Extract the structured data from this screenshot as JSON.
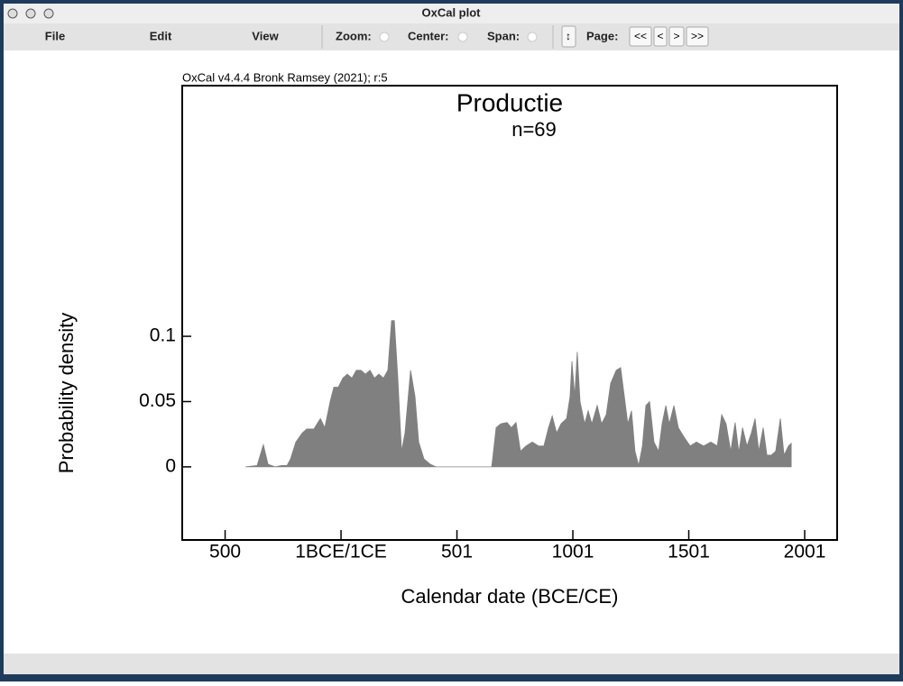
{
  "window": {
    "title": "OxCal plot",
    "menu": [
      "File",
      "Edit",
      "View"
    ],
    "toolbar": {
      "zoom": "Zoom:",
      "center": "Center:",
      "span": "Span:",
      "page": "Page:",
      "buttons": [
        "<<",
        "<",
        ">",
        ">>"
      ]
    }
  },
  "chart_data": {
    "type": "area",
    "annotation": "OxCal v4.4.4 Bronk Ramsey (2021); r:5",
    "title": "Productie",
    "subtitle": "n=69",
    "xlabel": "Calendar date (BCE/CE)",
    "ylabel": "Probability density",
    "color": "#808080",
    "xlim": [
      -685,
      2140
    ],
    "xticks": [
      {
        "value": -500,
        "label": "500"
      },
      {
        "value": 0,
        "label": "1BCE/1CE"
      },
      {
        "value": 500,
        "label": "501"
      },
      {
        "value": 1000,
        "label": "1001"
      },
      {
        "value": 1500,
        "label": "1501"
      },
      {
        "value": 2000,
        "label": "2001"
      }
    ],
    "ylim": [
      -0.056,
      0.292
    ],
    "yticks": [
      0,
      0.05,
      0.1
    ],
    "x": [
      -412,
      -362,
      -335,
      -315,
      -284,
      -257,
      -233,
      -218,
      -195,
      -167,
      -148,
      -117,
      -89,
      -70,
      -47,
      -31,
      -12,
      8,
      27,
      47,
      66,
      86,
      105,
      125,
      144,
      163,
      183,
      202,
      218,
      230,
      245,
      261,
      276,
      300,
      319,
      335,
      358,
      385,
      409,
      650,
      669,
      689,
      716,
      735,
      755,
      774,
      798,
      825,
      852,
      875,
      895,
      911,
      930,
      949,
      973,
      988,
      996,
      1008,
      1019,
      1031,
      1051,
      1066,
      1082,
      1105,
      1124,
      1144,
      1163,
      1187,
      1206,
      1222,
      1237,
      1253,
      1268,
      1284,
      1300,
      1315,
      1331,
      1350,
      1370,
      1385,
      1401,
      1416,
      1436,
      1455,
      1479,
      1506,
      1533,
      1564,
      1595,
      1623,
      1642,
      1661,
      1681,
      1700,
      1716,
      1732,
      1751,
      1770,
      1786,
      1802,
      1821,
      1837,
      1856,
      1875,
      1895,
      1911,
      1930,
      1942
    ],
    "values": [
      0,
      0.001,
      0.017,
      0.002,
      0,
      0.001,
      0.001,
      0.006,
      0.019,
      0.026,
      0.029,
      0.029,
      0.037,
      0.03,
      0.05,
      0.061,
      0.061,
      0.068,
      0.071,
      0.068,
      0.074,
      0.074,
      0.071,
      0.074,
      0.068,
      0.071,
      0.068,
      0.074,
      0.112,
      0.112,
      0.068,
      0.012,
      0.026,
      0.074,
      0.054,
      0.019,
      0.006,
      0.002,
      0,
      0,
      0.03,
      0.033,
      0.034,
      0.03,
      0.034,
      0.012,
      0.016,
      0.019,
      0.016,
      0.016,
      0.03,
      0.039,
      0.026,
      0.033,
      0.037,
      0.054,
      0.081,
      0.054,
      0.088,
      0.05,
      0.033,
      0.043,
      0.033,
      0.047,
      0.033,
      0.04,
      0.064,
      0.074,
      0.076,
      0.054,
      0.033,
      0.043,
      0.012,
      0.001,
      0.016,
      0.047,
      0.05,
      0.019,
      0.012,
      0.033,
      0.047,
      0.033,
      0.047,
      0.03,
      0.023,
      0.016,
      0.019,
      0.016,
      0.019,
      0.016,
      0.04,
      0.033,
      0.012,
      0.034,
      0.011,
      0.03,
      0.016,
      0.026,
      0.037,
      0.012,
      0.03,
      0.009,
      0.009,
      0.012,
      0.037,
      0.009,
      0.016,
      0.018
    ]
  }
}
